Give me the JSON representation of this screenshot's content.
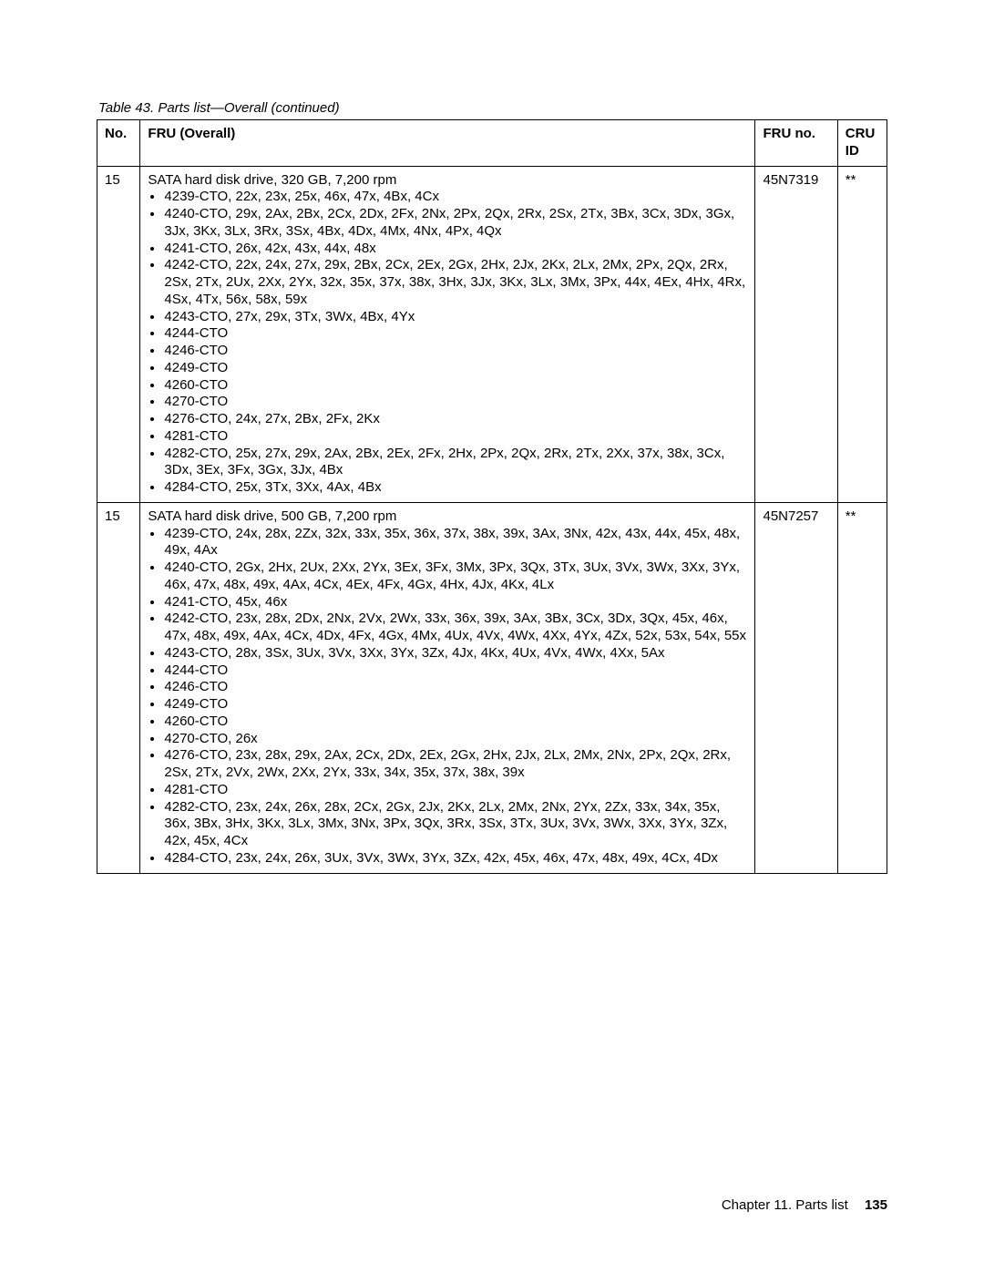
{
  "caption": "Table 43.  Parts list—Overall (continued)",
  "columns": {
    "no": "No.",
    "fru": "FRU (Overall)",
    "fruno": "FRU no.",
    "cru": "CRU ID"
  },
  "rows": [
    {
      "no": "15",
      "title": "SATA hard disk drive, 320 GB, 7,200 rpm",
      "bullets": [
        "4239-CTO, 22x, 23x, 25x, 46x, 47x, 4Bx, 4Cx",
        "4240-CTO, 29x, 2Ax, 2Bx, 2Cx, 2Dx, 2Fx, 2Nx, 2Px, 2Qx, 2Rx, 2Sx, 2Tx, 3Bx, 3Cx, 3Dx, 3Gx, 3Jx, 3Kx, 3Lx, 3Rx, 3Sx, 4Bx, 4Dx, 4Mx, 4Nx, 4Px, 4Qx",
        "4241-CTO, 26x, 42x, 43x, 44x, 48x",
        "4242-CTO, 22x, 24x, 27x, 29x, 2Bx, 2Cx, 2Ex, 2Gx, 2Hx, 2Jx, 2Kx, 2Lx, 2Mx, 2Px, 2Qx, 2Rx, 2Sx, 2Tx, 2Ux, 2Xx, 2Yx, 32x, 35x, 37x, 38x, 3Hx, 3Jx, 3Kx, 3Lx, 3Mx, 3Px, 44x, 4Ex, 4Hx, 4Rx, 4Sx, 4Tx, 56x, 58x, 59x",
        "4243-CTO, 27x, 29x, 3Tx, 3Wx, 4Bx, 4Yx",
        "4244-CTO",
        "4246-CTO",
        "4249-CTO",
        "4260-CTO",
        "4270-CTO",
        "4276-CTO, 24x, 27x, 2Bx, 2Fx, 2Kx",
        "4281-CTO",
        "4282-CTO, 25x, 27x, 29x, 2Ax, 2Bx, 2Ex, 2Fx, 2Hx, 2Px, 2Qx, 2Rx, 2Tx, 2Xx, 37x, 38x, 3Cx, 3Dx, 3Ex, 3Fx, 3Gx, 3Jx, 4Bx",
        "4284-CTO, 25x, 3Tx, 3Xx, 4Ax, 4Bx"
      ],
      "fruno": "45N7319",
      "cru": "**"
    },
    {
      "no": "15",
      "title": "SATA hard disk drive, 500 GB, 7,200 rpm",
      "bullets": [
        "4239-CTO, 24x, 28x, 2Zx, 32x, 33x, 35x, 36x, 37x, 38x, 39x, 3Ax, 3Nx, 42x, 43x, 44x, 45x, 48x, 49x, 4Ax",
        "4240-CTO, 2Gx, 2Hx, 2Ux, 2Xx, 2Yx, 3Ex, 3Fx, 3Mx, 3Px, 3Qx, 3Tx, 3Ux, 3Vx, 3Wx, 3Xx, 3Yx, 46x, 47x, 48x, 49x, 4Ax, 4Cx, 4Ex, 4Fx, 4Gx, 4Hx, 4Jx, 4Kx, 4Lx",
        "4241-CTO, 45x, 46x",
        "4242-CTO, 23x, 28x, 2Dx, 2Nx, 2Vx, 2Wx, 33x, 36x, 39x, 3Ax, 3Bx, 3Cx, 3Dx, 3Qx, 45x, 46x, 47x, 48x, 49x, 4Ax, 4Cx, 4Dx, 4Fx, 4Gx, 4Mx, 4Ux, 4Vx, 4Wx, 4Xx, 4Yx, 4Zx, 52x, 53x, 54x, 55x",
        "4243-CTO, 28x, 3Sx, 3Ux, 3Vx, 3Xx, 3Yx, 3Zx, 4Jx, 4Kx, 4Ux, 4Vx, 4Wx, 4Xx, 5Ax",
        "4244-CTO",
        "4246-CTO",
        "4249-CTO",
        "4260-CTO",
        "4270-CTO, 26x",
        "4276-CTO, 23x, 28x, 29x, 2Ax, 2Cx, 2Dx, 2Ex, 2Gx, 2Hx, 2Jx, 2Lx, 2Mx, 2Nx, 2Px, 2Qx, 2Rx, 2Sx, 2Tx, 2Vx, 2Wx, 2Xx, 2Yx, 33x, 34x, 35x, 37x, 38x, 39x",
        "4281-CTO",
        "4282-CTO, 23x, 24x, 26x, 28x, 2Cx, 2Gx, 2Jx, 2Kx, 2Lx, 2Mx, 2Nx, 2Yx, 2Zx, 33x, 34x, 35x, 36x, 3Bx, 3Hx, 3Kx, 3Lx, 3Mx, 3Nx, 3Px, 3Qx, 3Rx, 3Sx, 3Tx, 3Ux, 3Vx, 3Wx, 3Xx, 3Yx, 3Zx, 42x, 45x, 4Cx",
        "4284-CTO, 23x, 24x, 26x, 3Ux, 3Vx, 3Wx, 3Yx, 3Zx, 42x, 45x, 46x, 47x, 48x, 49x, 4Cx, 4Dx"
      ],
      "fruno": "45N7257",
      "cru": "**"
    }
  ],
  "footer": {
    "chapter": "Chapter 11.  Parts list",
    "page": "135"
  }
}
